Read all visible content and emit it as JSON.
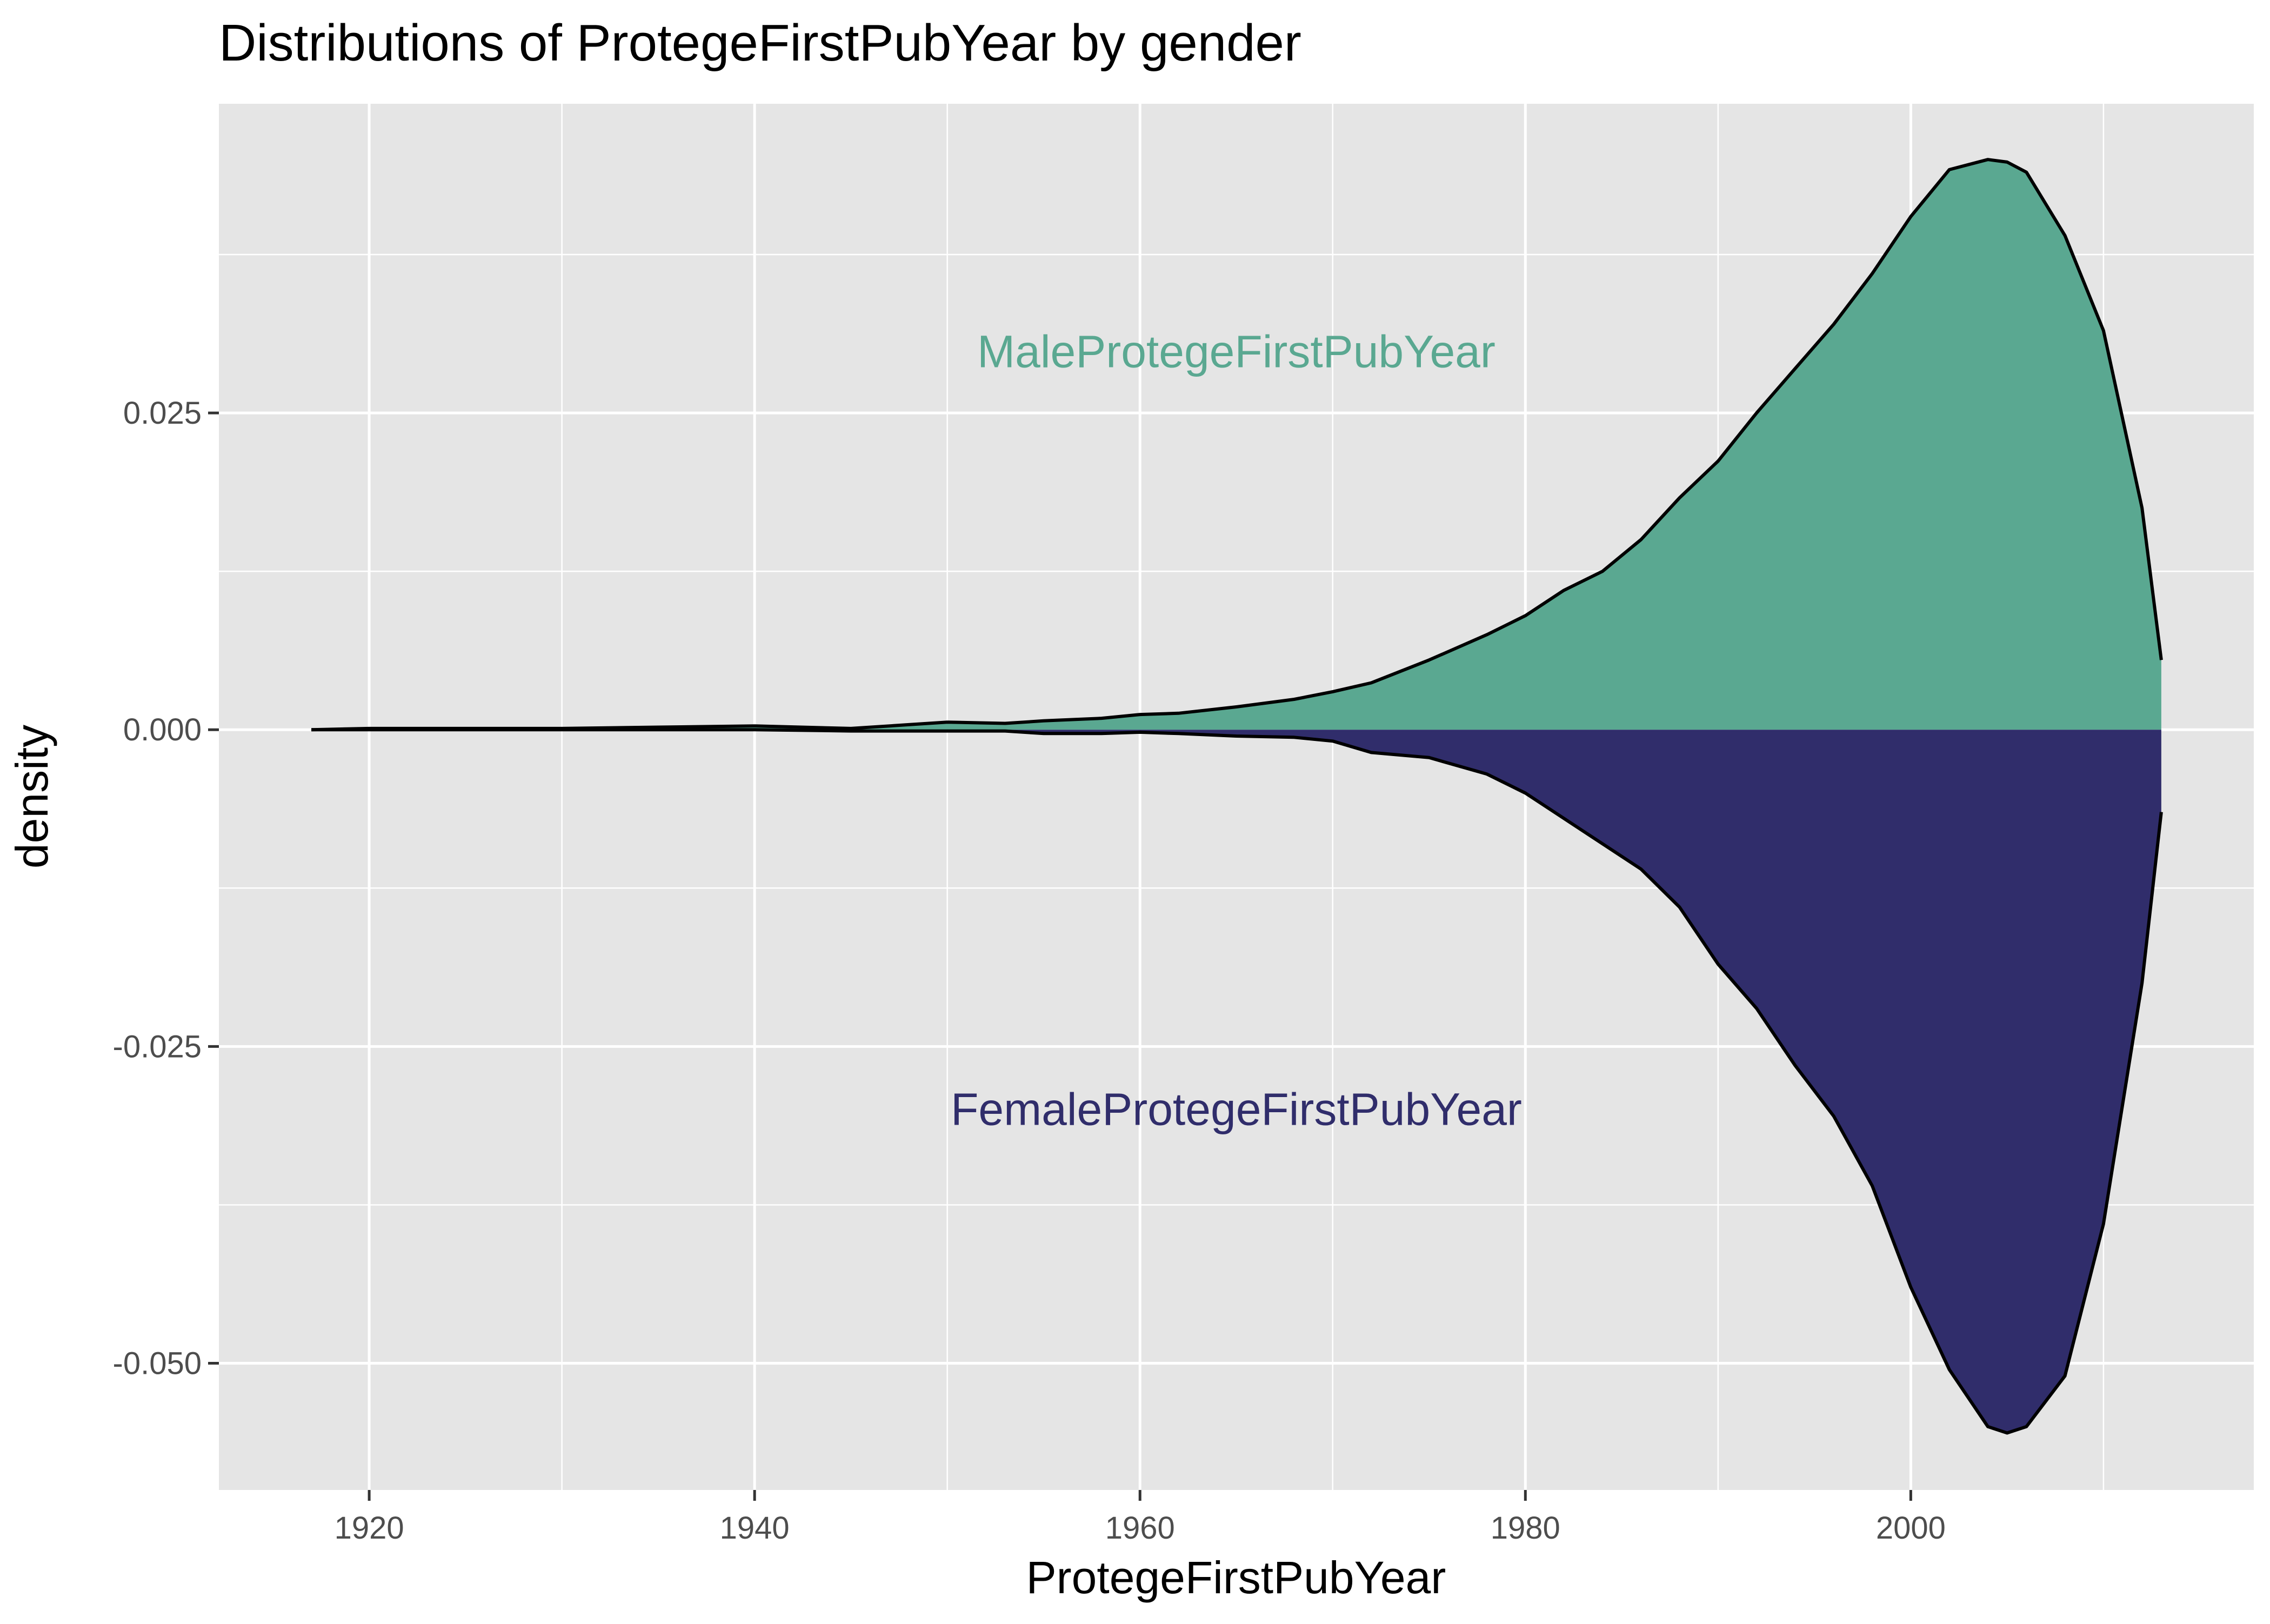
{
  "chart_data": {
    "type": "area",
    "title": "Distributions of ProtegeFirstPubYear by gender",
    "xlabel": "ProtegeFirstPubYear",
    "ylabel": "density",
    "xlim": [
      1912.2,
      2017.8
    ],
    "ylim": [
      -0.06,
      0.0494
    ],
    "x_ticks": [
      1920,
      1940,
      1960,
      1980,
      2000
    ],
    "x_tick_labels": [
      "1920",
      "1940",
      "1960",
      "1980",
      "2000"
    ],
    "y_ticks": [
      -0.05,
      -0.025,
      0,
      0.025
    ],
    "y_tick_labels": [
      "-0.050",
      "-0.025",
      "0.000",
      "0.025"
    ],
    "grid": true,
    "legend": "none",
    "colors": {
      "panel_bg": "#e5e5e5",
      "grid": "#ffffff",
      "outline": "#000000",
      "male": "#5aa891",
      "female": "#302d6b"
    },
    "annotations": [
      {
        "text": "MaleProtegeFirstPubYear",
        "x": 1965,
        "y": 0.0298,
        "color": "#5aa891"
      },
      {
        "text": "FemaleProtegeFirstPubYear",
        "x": 1965,
        "y": -0.03,
        "color": "#302d6b"
      }
    ],
    "x": [
      1917,
      1920,
      1925,
      1930,
      1935,
      1940,
      1945,
      1948,
      1950,
      1953,
      1955,
      1958,
      1960,
      1962,
      1965,
      1968,
      1970,
      1972,
      1975,
      1978,
      1980,
      1982,
      1984,
      1986,
      1988,
      1990,
      1992,
      1994,
      1996,
      1998,
      2000,
      2002,
      2004,
      2005,
      2006,
      2008,
      2010,
      2012,
      2013
    ],
    "series": [
      {
        "name": "MaleProtegeFirstPubYear",
        "values": [
          0,
          0.0001,
          0.0001,
          0.0001,
          0.0002,
          0.0003,
          0.0001,
          0.0004,
          0.0006,
          0.0005,
          0.0007,
          0.0009,
          0.0012,
          0.0013,
          0.0018,
          0.0024,
          0.003,
          0.0037,
          0.0055,
          0.0075,
          0.009,
          0.011,
          0.0125,
          0.015,
          0.0183,
          0.0212,
          0.025,
          0.0285,
          0.032,
          0.036,
          0.0405,
          0.0442,
          0.045,
          0.0448,
          0.044,
          0.039,
          0.0315,
          0.0175,
          0.0055
        ]
      },
      {
        "name": "FemaleProtegeFirstPubYear",
        "values": [
          0,
          0,
          0,
          0,
          0,
          0,
          -0.0001,
          -0.0001,
          -0.0001,
          -0.0001,
          -0.0003,
          -0.0003,
          -0.0002,
          -0.0003,
          -0.0005,
          -0.0006,
          -0.0009,
          -0.0018,
          -0.0022,
          -0.0035,
          -0.005,
          -0.007,
          -0.009,
          -0.011,
          -0.014,
          -0.0185,
          -0.022,
          -0.0265,
          -0.0305,
          -0.036,
          -0.044,
          -0.0505,
          -0.055,
          -0.0555,
          -0.055,
          -0.051,
          -0.039,
          -0.02,
          -0.0065
        ]
      }
    ]
  }
}
